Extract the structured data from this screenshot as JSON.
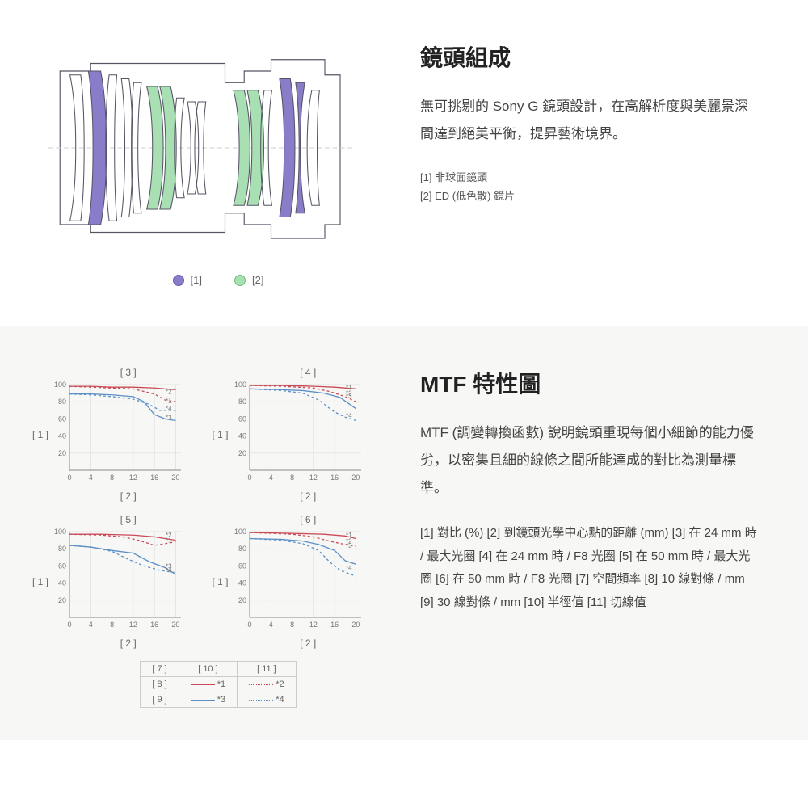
{
  "section1": {
    "heading": "鏡頭組成",
    "body": "無可挑剔的 Sony G 鏡頭設計，在高解析度與美麗景深間達到絕美平衡，提昇藝術境界。",
    "legend_items": [
      {
        "marker": "[1]",
        "label": "[1] 非球面鏡頭",
        "color": "#8b7cc9",
        "stroke": "#6a5aaf"
      },
      {
        "marker": "[2]",
        "label": "[2] ED (低色散) 鏡片",
        "color": "#a8dfb3",
        "stroke": "#6bbf7a"
      }
    ],
    "diagram": {
      "outline_color": "#555566",
      "aspherical_fill": "#8b7cc9",
      "ed_fill": "#a8dfb3",
      "axis_color": "#cccccc"
    }
  },
  "section2": {
    "heading": "MTF 特性圖",
    "body": "MTF (調變轉換函數) 說明鏡頭重現每個小細節的能力優劣，以密集且細的線條之間所能達成的對比為測量標準。",
    "caption": "[1] 對比 (%) [2] 到鏡頭光學中心點的距離 (mm) [3] 在 24 mm 時 / 最大光圈 [4] 在 24 mm 時 / F8 光圈 [5] 在 50 mm 時 / 最大光圈 [6] 在 50 mm 時 / F8 光圈 [7] 空間頻率 [8] 10 線對條 / mm [9] 30 線對條 / mm [10] 半徑值 [11] 切線值",
    "axis": {
      "y_label": "[ 1 ]",
      "x_label": "[ 2 ]",
      "x_ticks": [
        0,
        4,
        8,
        12,
        16,
        20
      ],
      "y_ticks": [
        20,
        40,
        60,
        80,
        100
      ],
      "xlim": [
        0,
        21
      ],
      "ylim": [
        0,
        100
      ],
      "grid_color": "#dddddd",
      "axis_color": "#888888",
      "fontsize": 9
    },
    "line_colors": {
      "red": "#c94a56",
      "blue": "#5b8fc7"
    },
    "legend_table": {
      "headers": [
        "[ 7 ]",
        "[ 10 ]",
        "[ 11 ]"
      ],
      "rows": [
        {
          "label": "[ 8 ]",
          "m1": "*1",
          "m2": "*2"
        },
        {
          "label": "[ 9 ]",
          "m1": "*3",
          "m2": "*4"
        }
      ]
    },
    "charts": [
      {
        "title": "[ 3 ]",
        "markers": {
          "1": [
            17.5,
            81
          ],
          "2": [
            17.5,
            92
          ],
          "3": [
            17.5,
            62
          ],
          "4": [
            17.5,
            72
          ]
        },
        "lines": [
          {
            "style": "red-solid",
            "pts": [
              [
                0,
                98
              ],
              [
                4,
                98
              ],
              [
                8,
                97
              ],
              [
                12,
                97
              ],
              [
                16,
                96
              ],
              [
                20,
                94
              ]
            ]
          },
          {
            "style": "red-dash",
            "pts": [
              [
                0,
                98
              ],
              [
                4,
                97
              ],
              [
                8,
                96
              ],
              [
                12,
                95
              ],
              [
                16,
                89
              ],
              [
                18,
                82
              ],
              [
                20,
                80
              ]
            ]
          },
          {
            "style": "blue-solid",
            "pts": [
              [
                0,
                89
              ],
              [
                4,
                89
              ],
              [
                8,
                88
              ],
              [
                12,
                86
              ],
              [
                14,
                80
              ],
              [
                16,
                65
              ],
              [
                18,
                60
              ],
              [
                20,
                58
              ]
            ]
          },
          {
            "style": "blue-dash",
            "pts": [
              [
                0,
                89
              ],
              [
                4,
                88
              ],
              [
                8,
                86
              ],
              [
                12,
                83
              ],
              [
                15,
                77
              ],
              [
                17,
                70
              ],
              [
                19,
                70
              ],
              [
                20,
                70
              ]
            ]
          }
        ]
      },
      {
        "title": "[ 4 ]",
        "markers": {
          "1": [
            17.5,
            97
          ],
          "2": [
            17.5,
            90
          ],
          "3": [
            17.5,
            87
          ],
          "4": [
            17.5,
            64
          ]
        },
        "lines": [
          {
            "style": "red-solid",
            "pts": [
              [
                0,
                99
              ],
              [
                6,
                99
              ],
              [
                12,
                98
              ],
              [
                16,
                97
              ],
              [
                20,
                95
              ]
            ]
          },
          {
            "style": "red-dash",
            "pts": [
              [
                0,
                99
              ],
              [
                6,
                98
              ],
              [
                12,
                96
              ],
              [
                15,
                92
              ],
              [
                18,
                86
              ],
              [
                20,
                80
              ]
            ]
          },
          {
            "style": "blue-solid",
            "pts": [
              [
                0,
                95
              ],
              [
                6,
                94
              ],
              [
                10,
                93
              ],
              [
                14,
                90
              ],
              [
                17,
                85
              ],
              [
                20,
                72
              ]
            ]
          },
          {
            "style": "blue-dash",
            "pts": [
              [
                0,
                95
              ],
              [
                6,
                93
              ],
              [
                10,
                90
              ],
              [
                13,
                82
              ],
              [
                16,
                68
              ],
              [
                18,
                62
              ],
              [
                20,
                58
              ]
            ]
          }
        ]
      },
      {
        "title": "[ 5 ]",
        "markers": {
          "1": [
            17.5,
            90
          ],
          "2": [
            17.5,
            96
          ],
          "3": [
            17.5,
            60
          ],
          "4": [
            17.5,
            55
          ]
        },
        "lines": [
          {
            "style": "red-solid",
            "pts": [
              [
                0,
                97
              ],
              [
                6,
                97
              ],
              [
                12,
                96
              ],
              [
                16,
                94
              ],
              [
                20,
                90
              ]
            ]
          },
          {
            "style": "red-dash",
            "pts": [
              [
                0,
                97
              ],
              [
                6,
                96
              ],
              [
                10,
                94
              ],
              [
                13,
                90
              ],
              [
                16,
                84
              ],
              [
                20,
                88
              ]
            ]
          },
          {
            "style": "blue-solid",
            "pts": [
              [
                0,
                84
              ],
              [
                4,
                82
              ],
              [
                8,
                78
              ],
              [
                12,
                75
              ],
              [
                15,
                65
              ],
              [
                18,
                58
              ],
              [
                20,
                50
              ]
            ]
          },
          {
            "style": "blue-dash",
            "pts": [
              [
                0,
                84
              ],
              [
                4,
                82
              ],
              [
                8,
                77
              ],
              [
                11,
                68
              ],
              [
                14,
                60
              ],
              [
                17,
                55
              ],
              [
                20,
                52
              ]
            ]
          }
        ]
      },
      {
        "title": "[ 6 ]",
        "markers": {
          "1": [
            17.5,
            96
          ],
          "2": [
            17.5,
            89
          ],
          "3": [
            17.5,
            84
          ],
          "4": [
            17.5,
            58
          ]
        },
        "lines": [
          {
            "style": "red-solid",
            "pts": [
              [
                0,
                99
              ],
              [
                8,
                98
              ],
              [
                14,
                97
              ],
              [
                18,
                95
              ],
              [
                20,
                92
              ]
            ]
          },
          {
            "style": "red-dash",
            "pts": [
              [
                0,
                99
              ],
              [
                8,
                97
              ],
              [
                12,
                94
              ],
              [
                15,
                89
              ],
              [
                18,
                85
              ],
              [
                20,
                83
              ]
            ]
          },
          {
            "style": "blue-solid",
            "pts": [
              [
                0,
                92
              ],
              [
                6,
                91
              ],
              [
                10,
                89
              ],
              [
                13,
                85
              ],
              [
                16,
                78
              ],
              [
                18,
                66
              ],
              [
                20,
                62
              ]
            ]
          },
          {
            "style": "blue-dash",
            "pts": [
              [
                0,
                92
              ],
              [
                6,
                90
              ],
              [
                10,
                86
              ],
              [
                13,
                78
              ],
              [
                15,
                65
              ],
              [
                17,
                55
              ],
              [
                20,
                48
              ]
            ]
          }
        ]
      }
    ]
  }
}
